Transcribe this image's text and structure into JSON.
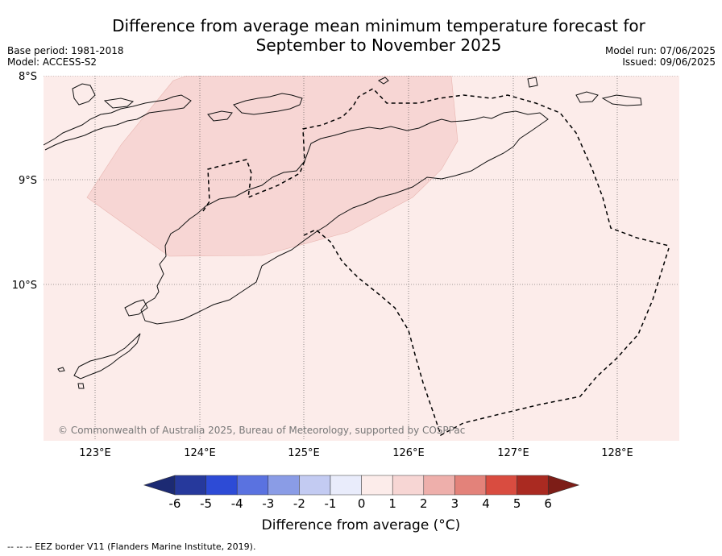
{
  "title": {
    "line1": "Difference from average mean minimum temperature forecast for",
    "line2": "September to November 2025"
  },
  "base_period": "Base period: 1981-2018",
  "model": "Model: ACCESS-S2",
  "model_run": "Model run: 07/06/2025",
  "issued": "Issued: 09/06/2025",
  "copyright": "© Commonwealth of Australia 2025, Bureau of Meteorology, supported by COSPPac",
  "lat_labels": [
    "8°S",
    "9°S",
    "10°S"
  ],
  "lon_labels": [
    "123°E",
    "124°E",
    "125°E",
    "126°E",
    "127°E",
    "128°E"
  ],
  "colorbar": {
    "ticks": [
      "-6",
      "-5",
      "-4",
      "-3",
      "-2",
      "-1",
      "0",
      "1",
      "2",
      "3",
      "4",
      "5",
      "6"
    ],
    "colors": [
      "#26399c",
      "#2d4bd6",
      "#5a72e0",
      "#8a9ce6",
      "#c3cbf2",
      "#e9ecfb",
      "#fcecea",
      "#f7d6d4",
      "#eeafab",
      "#e3827a",
      "#d94c40",
      "#aa2a21"
    ],
    "low_color": "#1c2a73",
    "high_color": "#7d1d17",
    "label": "Difference from average (°C)"
  },
  "map_colors": {
    "background": "#fcecea",
    "shaded_region": "#f7d6d4"
  },
  "footnote": "--  --  -- EEZ border V11 (Flanders Marine Institute, 2019)."
}
